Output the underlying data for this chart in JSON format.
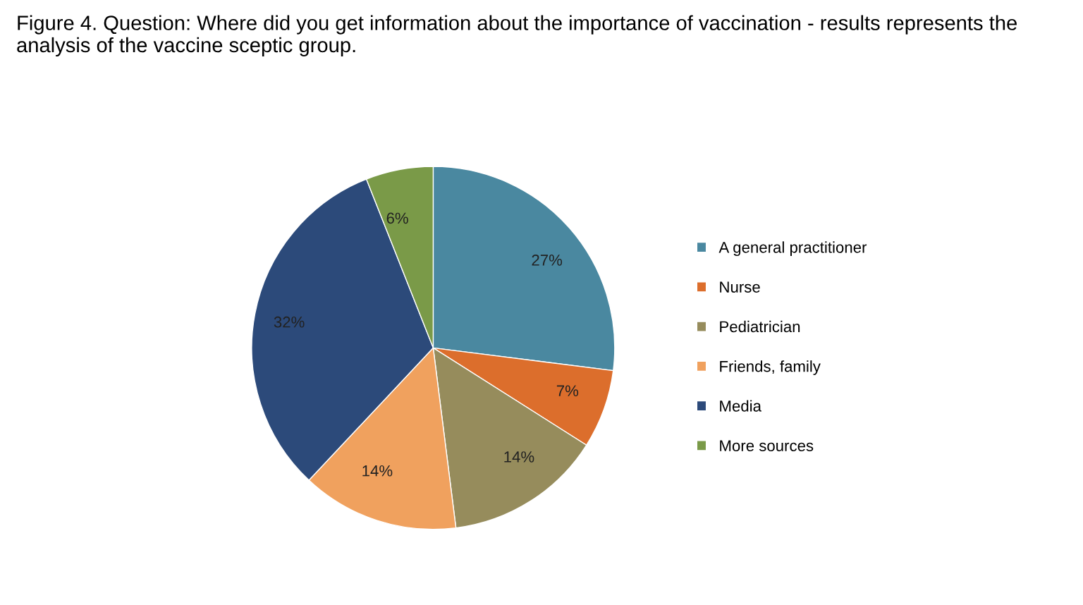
{
  "chart_data": {
    "type": "pie",
    "title": "Figure 4. Question: Where did you get information about the importance of vaccination - results represents the analysis of the vaccine sceptic group.",
    "categories": [
      "A general practitioner",
      "Nurse",
      "Pediatrician",
      "Friends, family",
      "Media",
      "More sources"
    ],
    "values": [
      27,
      7,
      14,
      14,
      32,
      6
    ],
    "colors": [
      "#4a88a0",
      "#dc6e2c",
      "#968c5c",
      "#f0a15e",
      "#2c4a7a",
      "#7a9a48"
    ],
    "value_labels": [
      "27%",
      "7%",
      "14%",
      "14%",
      "32%",
      "6%"
    ],
    "legend": "right"
  }
}
